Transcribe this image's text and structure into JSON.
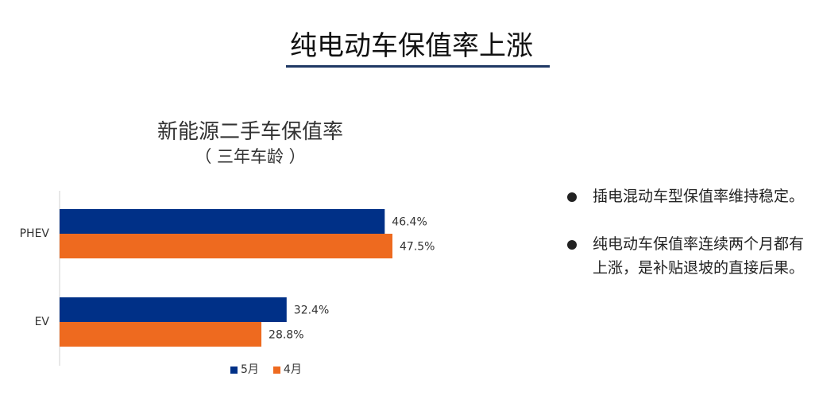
{
  "slide": {
    "title": "纯电动车保值率上涨"
  },
  "chart_data": {
    "type": "bar",
    "orientation": "horizontal",
    "title": "新能源二手车保值率",
    "subtitle": "（  三年车龄  ）",
    "categories": [
      "PHEV",
      "EV"
    ],
    "series": [
      {
        "name": "5月",
        "values": [
          46.4,
          32.4
        ],
        "labels": [
          "46.4%",
          "32.4%"
        ],
        "color": "#003087"
      },
      {
        "name": "4月",
        "values": [
          47.5,
          28.8
        ],
        "labels": [
          "47.5%",
          "28.8%"
        ],
        "color": "#ee6a1f"
      }
    ],
    "xlim": [
      0,
      100
    ],
    "grid": false,
    "legend": "bottom"
  },
  "bullets": [
    {
      "text": "插电混动车型保值率维持稳定。"
    },
    {
      "text": "纯电动车保值率连续两个月都有上涨，是补贴退坡的直接后果。"
    }
  ]
}
